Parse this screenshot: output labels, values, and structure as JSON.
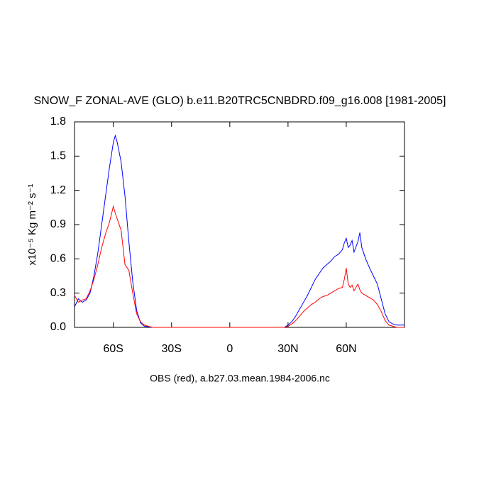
{
  "chart_data": {
    "type": "line",
    "title": "SNOW_F ZONAL-AVE (GLO) b.e11.B20TRC5CNBDRD.f09_g16.008 [1981-2005]",
    "ylabel": "x10⁻⁵ Kg m⁻² s⁻¹",
    "caption": "OBS (red), a.b27.03.mean.1984-2006.nc",
    "xlim": [
      -80,
      90
    ],
    "ylim": [
      0,
      1.8
    ],
    "xticks": [
      {
        "value": -60,
        "label": "60S"
      },
      {
        "value": -30,
        "label": "30S"
      },
      0,
      {
        "value": 30,
        "label": "30N"
      },
      {
        "value": 60,
        "label": "60N"
      }
    ],
    "yticks": [
      {
        "value": 0,
        "label": "0.0"
      },
      0.3,
      0.6,
      0.9,
      1.2,
      1.5,
      1.8
    ],
    "x": [
      -80,
      -78,
      -76,
      -74,
      -72,
      -70,
      -68,
      -66,
      -64,
      -62,
      -60,
      -59,
      -58,
      -56,
      -54,
      -52,
      -50,
      -48,
      -46,
      -44,
      -40,
      -30,
      0,
      28,
      30,
      32,
      34,
      36,
      38,
      40,
      42,
      44,
      46,
      48,
      50,
      52,
      54,
      56,
      58,
      59,
      60,
      61,
      62,
      63,
      64,
      66,
      67,
      68,
      70,
      72,
      74,
      76,
      78,
      80,
      82,
      84,
      86,
      88,
      90
    ],
    "series": [
      {
        "color": "#0000ff",
        "values": [
          0.18,
          0.25,
          0.22,
          0.24,
          0.3,
          0.45,
          0.65,
          0.9,
          1.15,
          1.4,
          1.62,
          1.68,
          1.62,
          1.45,
          1.15,
          0.75,
          0.4,
          0.15,
          0.04,
          0.01,
          0,
          0,
          0,
          0,
          0.02,
          0.05,
          0.1,
          0.16,
          0.22,
          0.28,
          0.35,
          0.42,
          0.47,
          0.52,
          0.55,
          0.58,
          0.62,
          0.64,
          0.68,
          0.74,
          0.78,
          0.7,
          0.72,
          0.76,
          0.66,
          0.75,
          0.83,
          0.7,
          0.6,
          0.52,
          0.45,
          0.38,
          0.25,
          0.12,
          0.05,
          0.03,
          0.02,
          0.02,
          0.02
        ]
      },
      {
        "color": "#ff0000",
        "values": [
          0.28,
          0.22,
          0.24,
          0.25,
          0.32,
          0.42,
          0.55,
          0.7,
          0.82,
          0.92,
          1.06,
          1.0,
          0.95,
          0.85,
          0.55,
          0.5,
          0.3,
          0.12,
          0.05,
          0.02,
          0,
          0,
          0,
          0,
          0.01,
          0.03,
          0.06,
          0.1,
          0.14,
          0.17,
          0.2,
          0.22,
          0.25,
          0.27,
          0.28,
          0.3,
          0.32,
          0.34,
          0.35,
          0.42,
          0.52,
          0.38,
          0.35,
          0.37,
          0.32,
          0.38,
          0.33,
          0.3,
          0.28,
          0.26,
          0.24,
          0.2,
          0.14,
          0.06,
          0.02,
          0.01,
          0,
          0,
          0
        ]
      }
    ]
  }
}
